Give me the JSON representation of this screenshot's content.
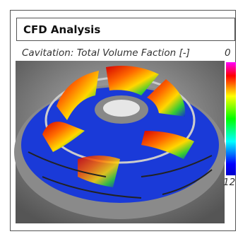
{
  "header": {
    "title": "CFD Analysis"
  },
  "figure": {
    "caption": "Cavitation: Total Volume Faction [-]",
    "colorbar": {
      "top": 0,
      "bottom": 12
    }
  }
}
